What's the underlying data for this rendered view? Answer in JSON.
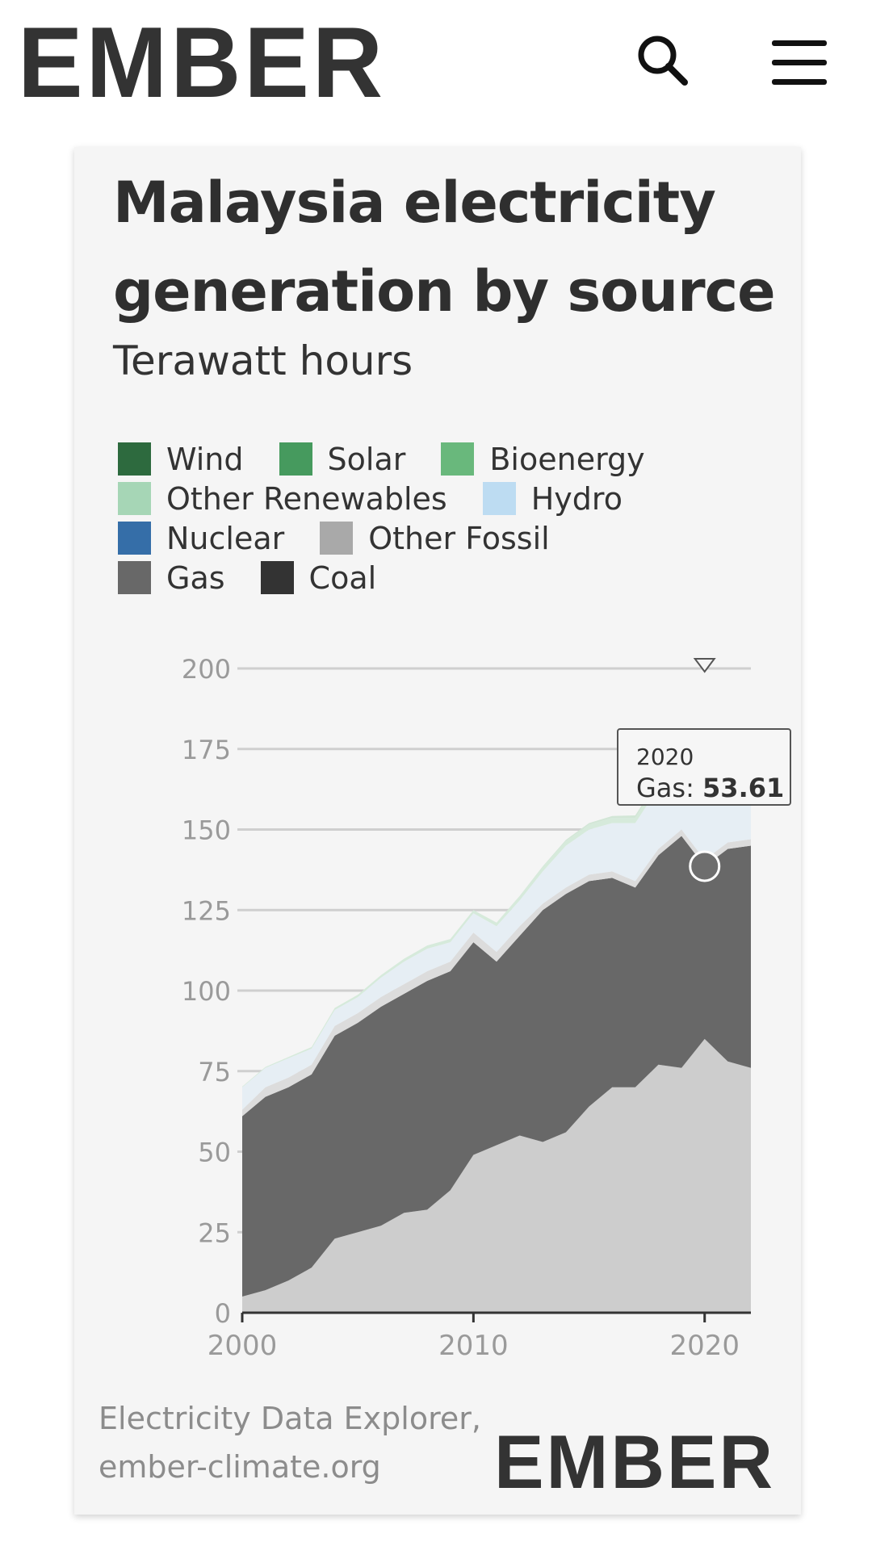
{
  "header": {
    "brand": "EMBER",
    "search_icon": "search-icon",
    "menu_icon": "hamburger-menu-icon"
  },
  "card": {
    "title_line1": "Malaysia electricity",
    "title_line2": "generation by source",
    "subtitle": "Terawatt hours",
    "source_line1": "Electricity Data Explorer,",
    "source_line2": "ember-climate.org",
    "footer_brand": "EMBER"
  },
  "colors": {
    "brand_dark": "#333333",
    "brand_green": "#5fcf7d",
    "wind": "#2d6a3e",
    "solar": "#469a5e",
    "bioenergy": "#69b87c",
    "other_renewables": "#a6d6b6",
    "hydro": "#bddcf2",
    "nuclear": "#356ea8",
    "other_fossil": "#a9a9a9",
    "gas": "#686868",
    "coal": "#333333"
  },
  "legend": [
    {
      "label": "Wind",
      "color": "#2d6a3e"
    },
    {
      "label": "Solar",
      "color": "#469a5e"
    },
    {
      "label": "Bioenergy",
      "color": "#69b87c"
    },
    {
      "label": "Other Renewables",
      "color": "#a6d6b6"
    },
    {
      "label": "Hydro",
      "color": "#bddcf2"
    },
    {
      "label": "Nuclear",
      "color": "#356ea8"
    },
    {
      "label": "Other Fossil",
      "color": "#a9a9a9"
    },
    {
      "label": "Gas",
      "color": "#686868"
    },
    {
      "label": "Coal",
      "color": "#333333"
    }
  ],
  "tooltip": {
    "year": "2020",
    "label": "Gas:",
    "value": "53.61"
  },
  "chart_data": {
    "type": "area",
    "title": "Malaysia electricity generation by source",
    "ylabel": "Terawatt hours",
    "xlim": [
      2000,
      2022
    ],
    "ylim": [
      0,
      200
    ],
    "yticks": [
      0,
      25,
      50,
      75,
      100,
      125,
      150,
      175,
      200
    ],
    "xticks": [
      2000,
      2010,
      2020
    ],
    "grid": true,
    "legend_position": "top",
    "x": [
      2000,
      2001,
      2002,
      2003,
      2004,
      2005,
      2006,
      2007,
      2008,
      2009,
      2010,
      2011,
      2012,
      2013,
      2014,
      2015,
      2016,
      2017,
      2018,
      2019,
      2020,
      2021,
      2022
    ],
    "series": [
      {
        "name": "Coal",
        "values": [
          5,
          7,
          10,
          14,
          23,
          25,
          27,
          31,
          32,
          38,
          49,
          52,
          55,
          53,
          56,
          64,
          70,
          70,
          77,
          76,
          85,
          78,
          76
        ]
      },
      {
        "name": "Gas",
        "values": [
          56,
          60,
          60,
          60,
          63,
          65,
          68,
          68,
          71,
          68,
          66,
          57,
          62,
          72,
          74,
          70,
          65,
          62,
          65,
          72,
          53.61,
          66,
          69
        ]
      },
      {
        "name": "Other Fossil",
        "values": [
          2,
          3,
          3,
          3,
          3,
          3,
          3,
          3,
          3,
          3,
          3,
          3,
          3,
          2,
          2,
          2,
          2,
          2,
          2,
          2,
          2,
          2,
          2
        ]
      },
      {
        "name": "Hydro",
        "values": [
          7,
          6,
          6,
          5,
          5,
          5,
          6,
          7,
          7,
          6,
          6,
          8,
          8,
          10,
          13,
          14,
          15,
          18,
          19,
          20,
          24,
          26,
          27
        ]
      },
      {
        "name": "Bioenergy",
        "values": [
          0.2,
          0.3,
          0.4,
          0.5,
          0.6,
          0.7,
          0.8,
          0.9,
          1,
          1,
          1,
          1,
          1.2,
          1.3,
          1.4,
          1.5,
          1.6,
          1.6,
          1.7,
          1.8,
          1.8,
          1.9,
          2
        ]
      },
      {
        "name": "Solar",
        "values": [
          0,
          0,
          0,
          0,
          0,
          0,
          0,
          0,
          0,
          0,
          0,
          0.1,
          0.2,
          0.3,
          0.4,
          0.5,
          0.6,
          0.8,
          1,
          1.2,
          1.8,
          2,
          2.3
        ]
      },
      {
        "name": "Wind",
        "values": [
          0,
          0,
          0,
          0,
          0,
          0,
          0,
          0,
          0,
          0,
          0,
          0,
          0,
          0,
          0,
          0,
          0,
          0,
          0,
          0,
          0,
          0,
          0
        ]
      },
      {
        "name": "Other Renewables",
        "values": [
          0,
          0,
          0,
          0,
          0,
          0,
          0,
          0,
          0,
          0,
          0,
          0,
          0,
          0,
          0,
          0,
          0,
          0,
          0,
          0,
          0,
          0,
          0
        ]
      },
      {
        "name": "Nuclear",
        "values": [
          0,
          0,
          0,
          0,
          0,
          0,
          0,
          0,
          0,
          0,
          0,
          0,
          0,
          0,
          0,
          0,
          0,
          0,
          0,
          0,
          0,
          0,
          0
        ]
      }
    ],
    "highlight": {
      "series": "Gas",
      "x": 2020,
      "value": 53.61
    }
  }
}
